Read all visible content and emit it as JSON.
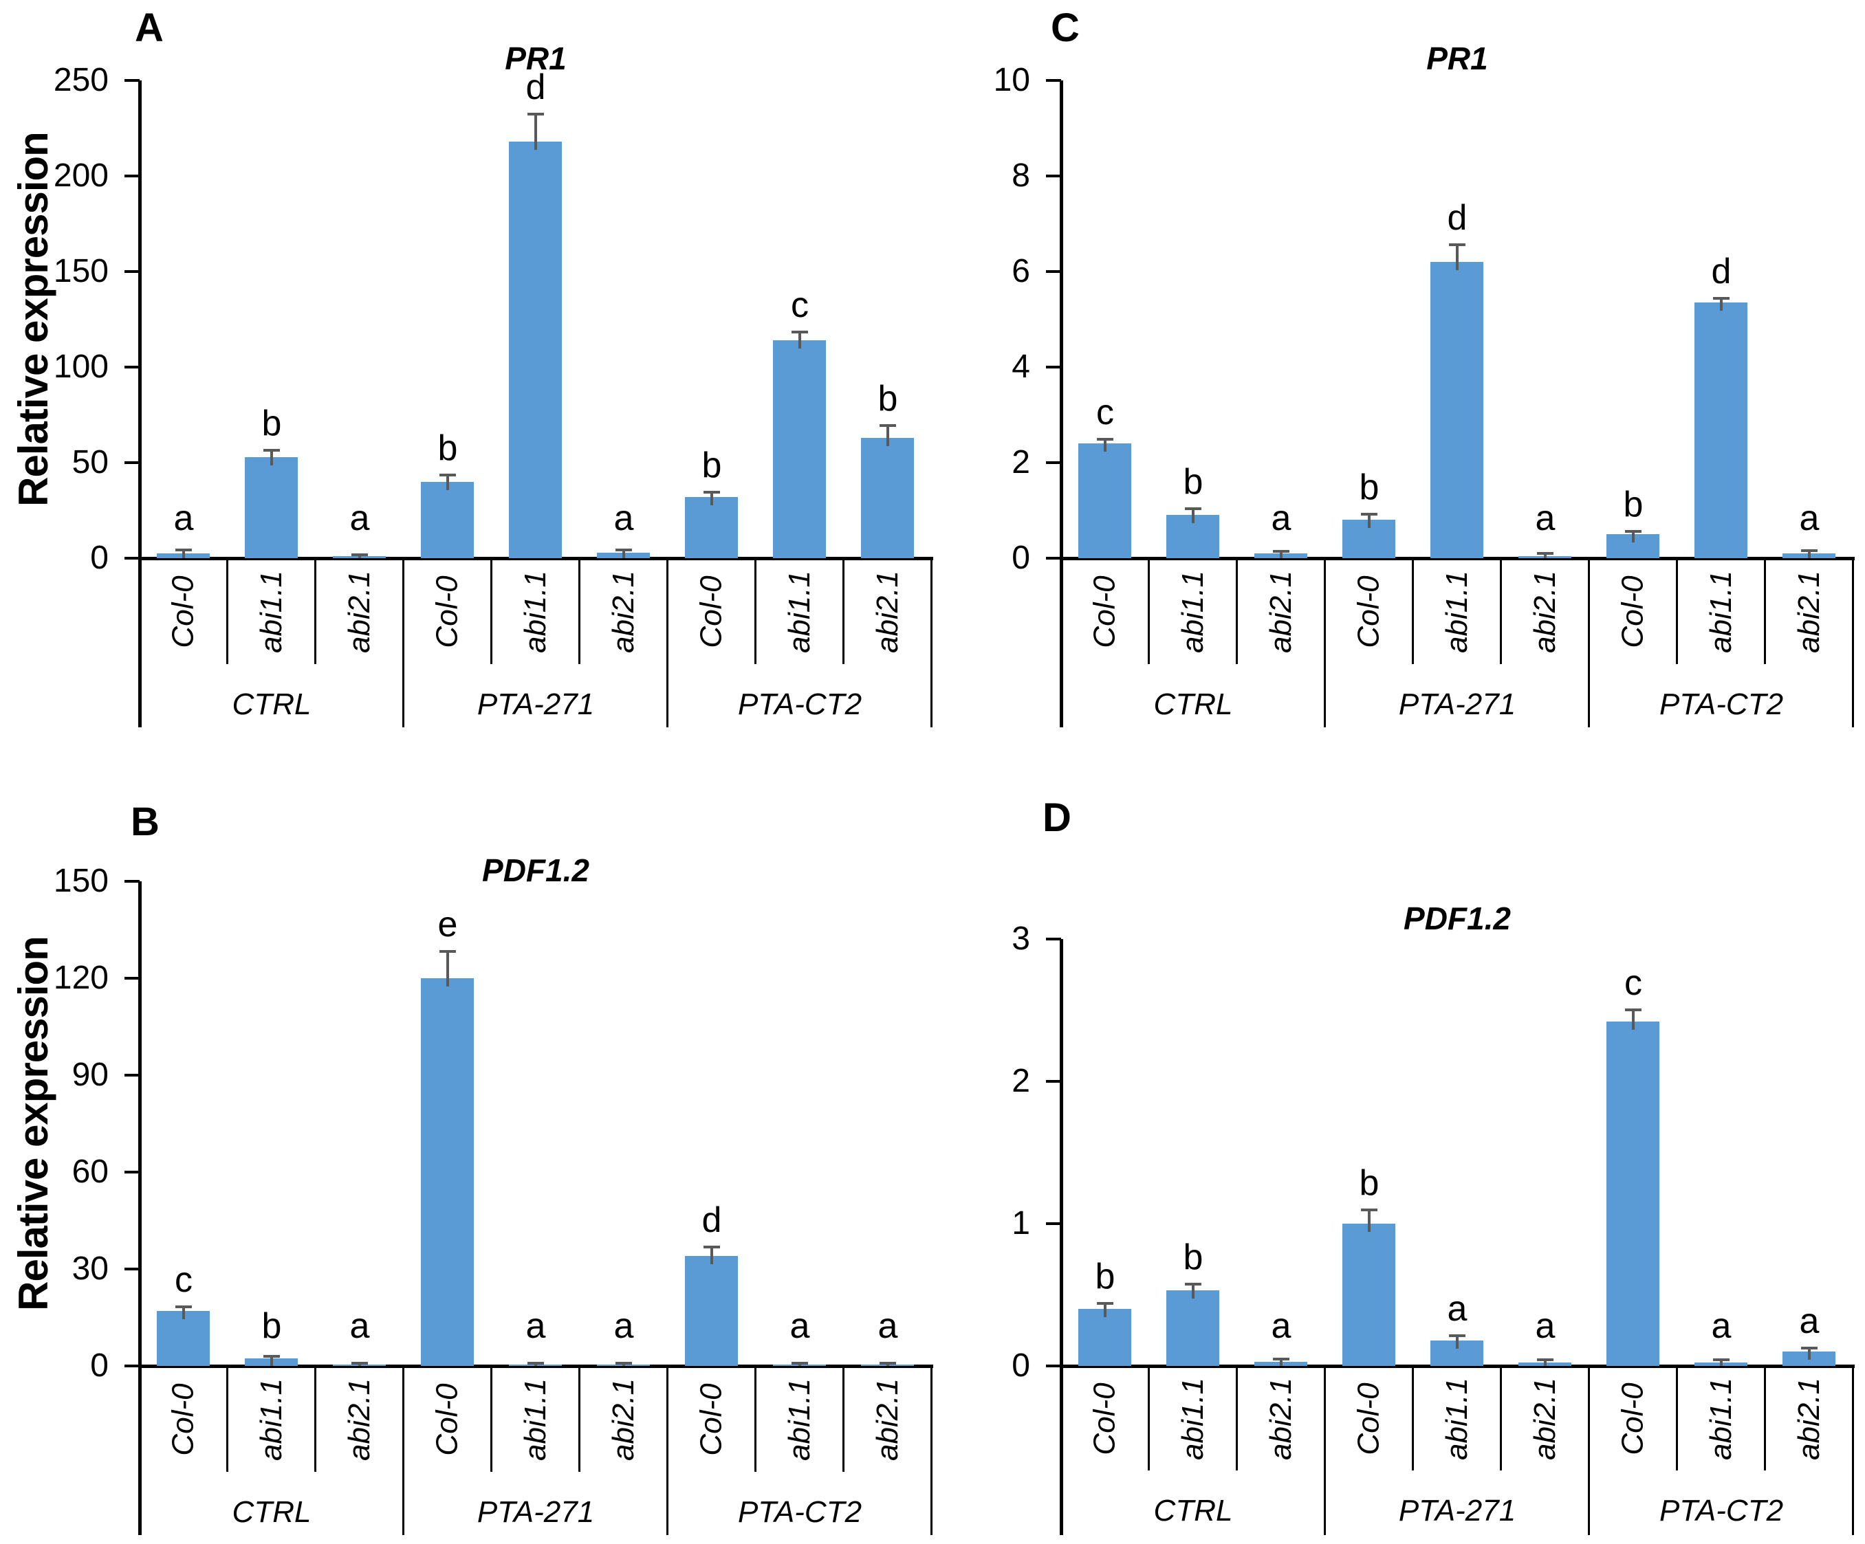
{
  "figure": {
    "y_axis_title": "Relative expression",
    "treatment_groups": [
      "CTRL",
      "PTA-271",
      "PTA-CT2"
    ],
    "genotypes": [
      "Col-0",
      "abi1.1",
      "abi2.1"
    ],
    "bar_color": "#5B9BD5",
    "error_bar_color": "#595959",
    "axis_color": "#000000"
  },
  "chart_data": [
    {
      "panel_letter": "A",
      "type": "bar",
      "title": "PR1",
      "ylabel": "Relative expression",
      "ylim": [
        0,
        250
      ],
      "yticks": [
        0,
        50,
        100,
        150,
        200,
        250
      ],
      "grid": false,
      "legend": false,
      "group_labels": [
        "CTRL",
        "PTA-271",
        "PTA-CT2"
      ],
      "categories": [
        "Col-0",
        "abi1.1",
        "abi2.1",
        "Col-0",
        "abi1.1",
        "abi2.1",
        "Col-0",
        "abi1.1",
        "abi2.1"
      ],
      "values": [
        2.5,
        53,
        1,
        40,
        218,
        3,
        32,
        114,
        63
      ],
      "errors": [
        1.5,
        3,
        0.5,
        3,
        14,
        1,
        2,
        4,
        6
      ],
      "sig_letters": [
        "a",
        "b",
        "a",
        "b",
        "d",
        "a",
        "b",
        "c",
        "b"
      ],
      "bar_color": "#5B9BD5",
      "error_color": "#595959"
    },
    {
      "panel_letter": "B",
      "type": "bar",
      "title": "PDF1.2",
      "ylabel": "Relative expression",
      "ylim": [
        0,
        150
      ],
      "yticks": [
        0,
        30,
        60,
        90,
        120,
        150
      ],
      "grid": false,
      "legend": false,
      "group_labels": [
        "CTRL",
        "PTA-271",
        "PTA-CT2"
      ],
      "categories": [
        "Col-0",
        "abi1.1",
        "abi2.1",
        "Col-0",
        "abi1.1",
        "abi2.1",
        "Col-0",
        "abi1.1",
        "abi2.1"
      ],
      "values": [
        17,
        2.3,
        0.5,
        120,
        0.4,
        0.5,
        34,
        0.4,
        0.4
      ],
      "errors": [
        1,
        0.4,
        0.2,
        8,
        0.15,
        0.2,
        2.5,
        0.15,
        0.15
      ],
      "sig_letters": [
        "c",
        "b",
        "a",
        "e",
        "a",
        "a",
        "d",
        "a",
        "a"
      ],
      "bar_color": "#5B9BD5",
      "error_color": "#595959"
    },
    {
      "panel_letter": "C",
      "type": "bar",
      "title": "PR1",
      "ylabel": null,
      "ylim": [
        0,
        10
      ],
      "yticks": [
        0,
        2,
        4,
        6,
        8,
        10
      ],
      "grid": false,
      "legend": false,
      "group_labels": [
        "CTRL",
        "PTA-271",
        "PTA-CT2"
      ],
      "categories": [
        "Col-0",
        "abi1.1",
        "abi2.1",
        "Col-0",
        "abi1.1",
        "abi2.1",
        "Col-0",
        "abi1.1",
        "abi2.1"
      ],
      "values": [
        2.4,
        0.9,
        0.1,
        0.8,
        6.2,
        0.05,
        0.5,
        5.35,
        0.1
      ],
      "errors": [
        0.08,
        0.12,
        0.03,
        0.1,
        0.35,
        0.03,
        0.05,
        0.08,
        0.04
      ],
      "sig_letters": [
        "c",
        "b",
        "a",
        "b",
        "d",
        "a",
        "b",
        "d",
        "a"
      ],
      "bar_color": "#5B9BD5",
      "error_color": "#595959"
    },
    {
      "panel_letter": "D",
      "type": "bar",
      "title": "PDF1.2",
      "ylabel": null,
      "ylim": [
        0,
        3
      ],
      "yticks": [
        0,
        1,
        2,
        3
      ],
      "grid": false,
      "legend": false,
      "group_labels": [
        "CTRL",
        "PTA-271",
        "PTA-CT2"
      ],
      "categories": [
        "Col-0",
        "abi1.1",
        "abi2.1",
        "Col-0",
        "abi1.1",
        "abi2.1",
        "Col-0",
        "abi1.1",
        "abi2.1"
      ],
      "values": [
        0.4,
        0.53,
        0.03,
        1.0,
        0.18,
        0.025,
        2.42,
        0.025,
        0.1
      ],
      "errors": [
        0.035,
        0.04,
        0.012,
        0.09,
        0.03,
        0.012,
        0.08,
        0.012,
        0.02
      ],
      "sig_letters": [
        "b",
        "b",
        "a",
        "b",
        "a",
        "a",
        "c",
        "a",
        "a"
      ],
      "bar_color": "#5B9BD5",
      "error_color": "#595959"
    }
  ]
}
